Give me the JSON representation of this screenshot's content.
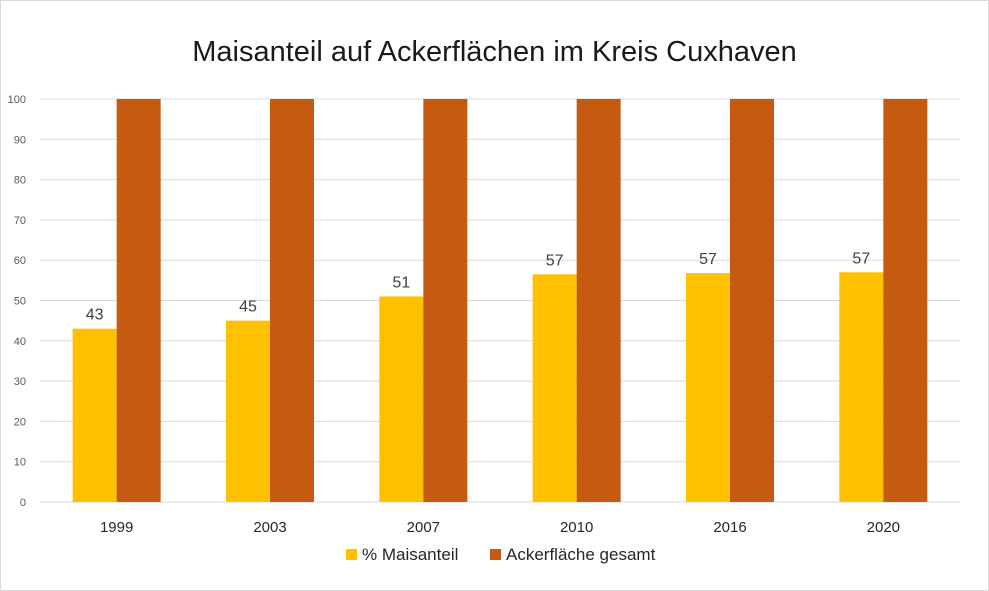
{
  "chart_data": {
    "type": "bar",
    "title": "Maisanteil auf Ackerflächen im Kreis Cuxhaven",
    "categories": [
      "1999",
      "2003",
      "2007",
      "2010",
      "2016",
      "2020"
    ],
    "series": [
      {
        "name": "% Maisanteil",
        "color": "#FFC000",
        "values": [
          43,
          45,
          51,
          56.5,
          56.8,
          57
        ],
        "labels": [
          "43",
          "45",
          "51",
          "57",
          "57",
          "57"
        ]
      },
      {
        "name": "Ackerfläche gesamt",
        "color": "#C55A11",
        "values": [
          100,
          100,
          100,
          100,
          100,
          100
        ]
      }
    ],
    "ylim": [
      0,
      100
    ],
    "yticks": [
      0,
      10,
      20,
      30,
      40,
      50,
      60,
      70,
      80,
      90,
      100
    ],
    "grid": true,
    "xlabel": "",
    "ylabel": "",
    "legend_position": "bottom"
  }
}
